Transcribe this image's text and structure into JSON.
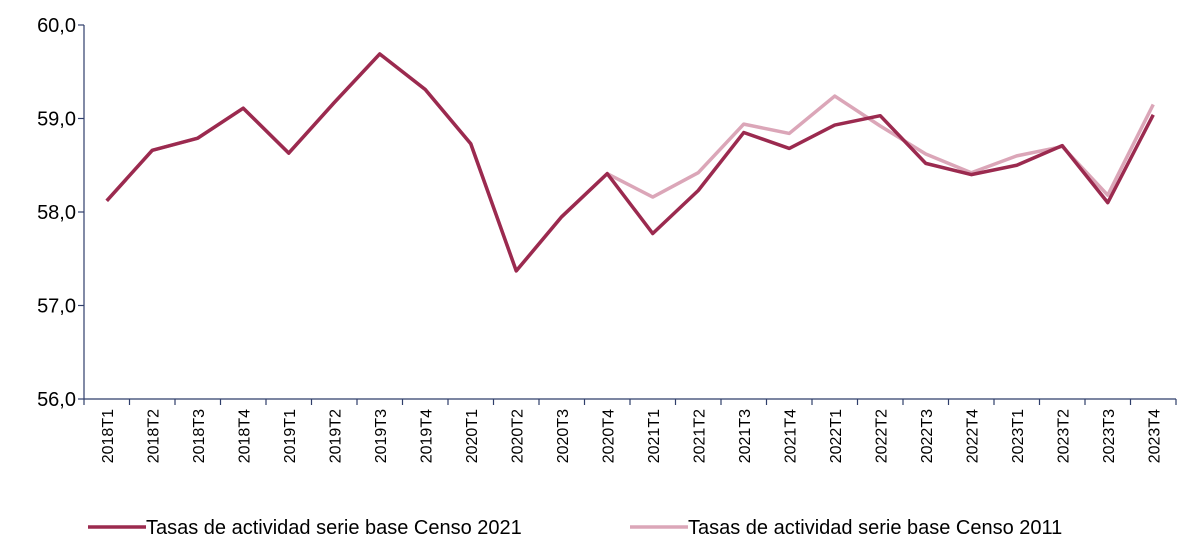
{
  "chart_data": {
    "type": "line",
    "categories": [
      "2018T1",
      "2018T2",
      "2018T3",
      "2018T4",
      "2019T1",
      "2019T2",
      "2019T3",
      "2019T4",
      "2020T1",
      "2020T2",
      "2020T3",
      "2020T4",
      "2021T1",
      "2021T2",
      "2021T3",
      "2021T4",
      "2022T1",
      "2022T2",
      "2022T3",
      "2022T4",
      "2023T1",
      "2023T2",
      "2023T3",
      "2023T4"
    ],
    "series": [
      {
        "name": "Tasas de actividad serie base Censo 2021",
        "color": "#9b2a4f",
        "values": [
          58.12,
          58.66,
          58.79,
          59.11,
          58.63,
          59.17,
          59.69,
          59.31,
          58.73,
          57.37,
          57.95,
          58.41,
          57.77,
          58.23,
          58.85,
          58.68,
          58.93,
          59.03,
          58.52,
          58.4,
          58.5,
          58.71,
          58.1,
          59.04
        ]
      },
      {
        "name": "Tasas de actividad serie base Censo 2011",
        "color": "#dba6b8",
        "values": [
          58.12,
          58.66,
          58.79,
          59.11,
          58.63,
          59.17,
          59.69,
          59.31,
          58.73,
          57.37,
          57.95,
          58.41,
          58.16,
          58.42,
          58.94,
          58.84,
          59.24,
          58.92,
          58.62,
          58.42,
          58.6,
          58.7,
          58.18,
          59.15
        ]
      }
    ],
    "ylim": [
      56,
      60
    ],
    "yticks": [
      {
        "value": 56,
        "label": "56,0"
      },
      {
        "value": 57,
        "label": "57,0"
      },
      {
        "value": 58,
        "label": "58,0"
      },
      {
        "value": 59,
        "label": "59,0"
      },
      {
        "value": 60,
        "label": "60,0"
      }
    ],
    "legend": "bottom"
  }
}
